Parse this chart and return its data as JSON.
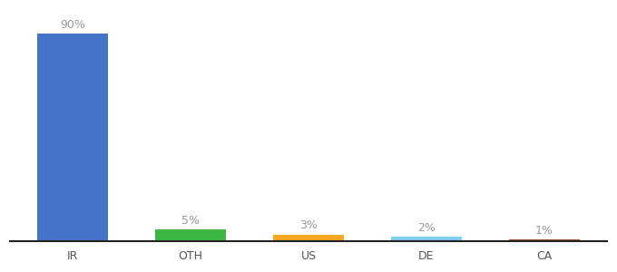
{
  "categories": [
    "IR",
    "OTH",
    "US",
    "DE",
    "CA"
  ],
  "values": [
    90,
    5,
    3,
    2,
    1
  ],
  "bar_colors": [
    "#4472c4",
    "#3db843",
    "#f5a623",
    "#7ecef4",
    "#a0522d"
  ],
  "labels": [
    "90%",
    "5%",
    "3%",
    "2%",
    "1%"
  ],
  "ylim": [
    0,
    100
  ],
  "background_color": "#ffffff",
  "label_color": "#999999",
  "label_fontsize": 9,
  "tick_fontsize": 9,
  "bar_width": 0.6
}
